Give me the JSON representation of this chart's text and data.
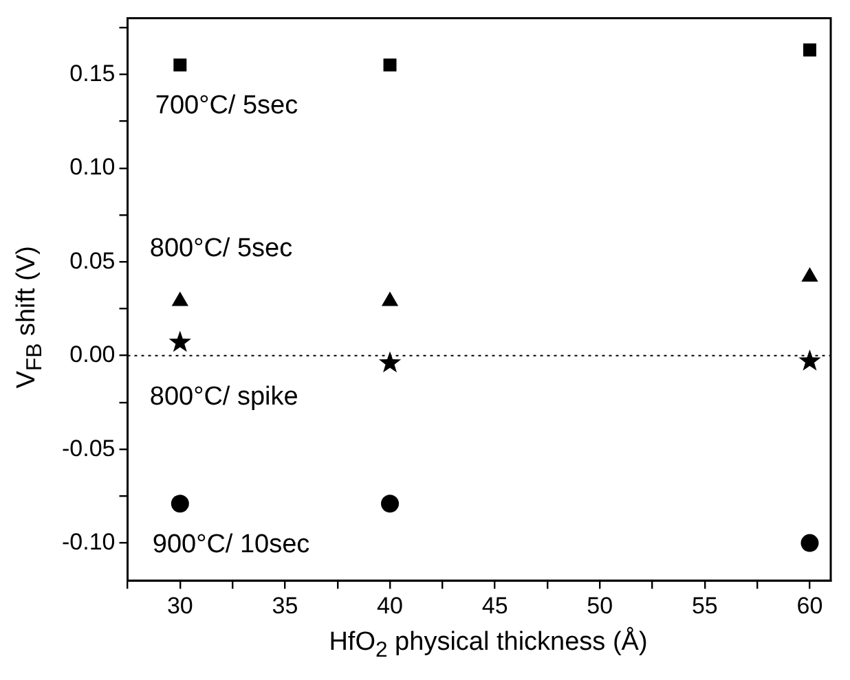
{
  "chart_data": {
    "type": "scatter",
    "xlabel": "HfO$_{2}$ physical thickness (Å)",
    "ylabel": "V$_{FB}$ shift (V)",
    "x": [
      30,
      40,
      60
    ],
    "series": [
      {
        "name": "700°C/ 5sec",
        "color": "#000000",
        "marker": "square",
        "values": [
          0.155,
          0.155,
          0.163
        ]
      },
      {
        "name": "800°C/ 5sec",
        "color": "#000000",
        "marker": "triangle",
        "values": [
          0.029,
          0.029,
          0.042
        ]
      },
      {
        "name": "800°C/ spike",
        "color": "#000000",
        "marker": "star",
        "values": [
          0.007,
          -0.004,
          -0.003
        ]
      },
      {
        "name": "900°C/ 10sec",
        "color": "#000000",
        "marker": "circle",
        "values": [
          -0.079,
          -0.079,
          -0.1
        ]
      }
    ],
    "xlim": [
      27.5,
      61
    ],
    "ylim": [
      -0.12,
      0.18
    ],
    "xticks": [
      {
        "value": 27.5,
        "label": null
      },
      30,
      {
        "value": 32.5,
        "label": null
      },
      35,
      {
        "value": 37.5,
        "label": null
      },
      40,
      {
        "value": 42.5,
        "label": null
      },
      45,
      {
        "value": 47.5,
        "label": null
      },
      50,
      {
        "value": 52.5,
        "label": null
      },
      55,
      {
        "value": 57.5,
        "label": null
      },
      60
    ],
    "yticks": [
      {
        "value": -0.1,
        "label": "-0.10"
      },
      {
        "value": -0.075,
        "label": null
      },
      {
        "value": -0.05,
        "label": "-0.05"
      },
      {
        "value": -0.025,
        "label": null
      },
      {
        "value": 0,
        "label": "0.00"
      },
      {
        "value": 0.025,
        "label": null
      },
      {
        "value": 0.05,
        "label": "0.05"
      },
      {
        "value": 0.075,
        "label": null
      },
      {
        "value": 0.1,
        "label": "0.10"
      },
      {
        "value": 0.125,
        "label": null
      },
      {
        "value": 0.15,
        "label": "0.15"
      },
      {
        "value": 0.175,
        "label": null
      }
    ],
    "ref_lines": [
      {
        "axis": "y",
        "value": 0,
        "color": "#000000",
        "line_style": "dotted"
      }
    ],
    "grid": false,
    "legend": false
  }
}
